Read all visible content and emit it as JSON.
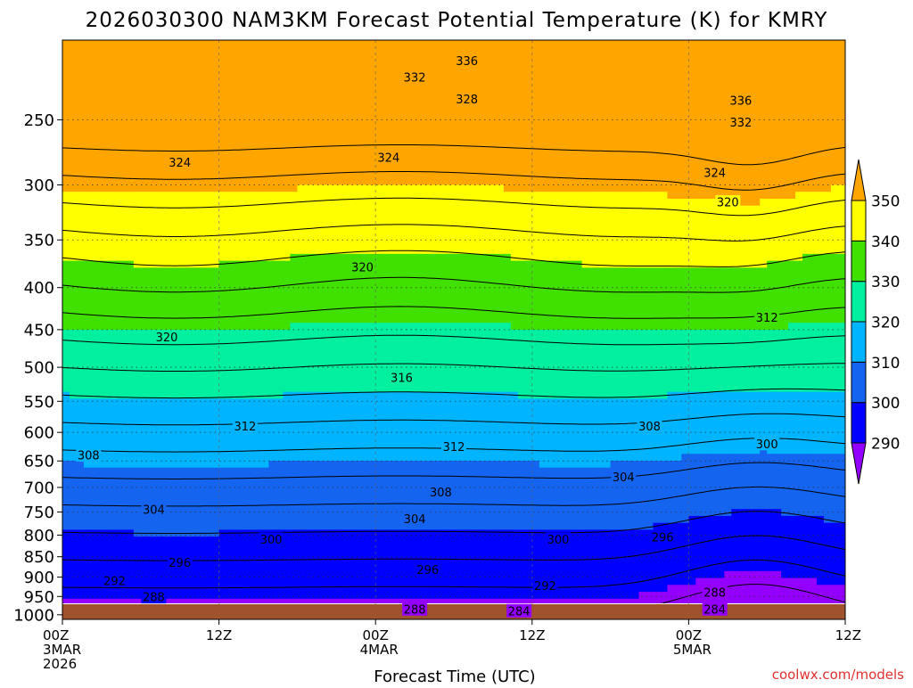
{
  "chart_data": {
    "type": "heatmap",
    "title": "2026030300 NAM3KM Forecast Potential Temperature (K) for KMRY",
    "xlabel": "Forecast Time (UTC)",
    "credit": "coolwx.com/models",
    "y_scale": "log pressure (hPa), inverted",
    "y_ticks": [
      "250",
      "300",
      "350",
      "400",
      "450",
      "500",
      "550",
      "600",
      "650",
      "700",
      "750",
      "800",
      "850",
      "900",
      "950",
      "1000"
    ],
    "ylim": [
      1013,
      200
    ],
    "x_ticks": [
      {
        "hour": 0,
        "lines": [
          "00Z",
          "3MAR",
          "2026"
        ]
      },
      {
        "hour": 12,
        "lines": [
          "12Z"
        ]
      },
      {
        "hour": 24,
        "lines": [
          "00Z",
          "4MAR"
        ]
      },
      {
        "hour": 36,
        "lines": [
          "12Z"
        ]
      },
      {
        "hour": 48,
        "lines": [
          "00Z",
          "5MAR"
        ]
      },
      {
        "hour": 60,
        "lines": [
          "12Z"
        ]
      }
    ],
    "xlim": [
      0,
      60
    ],
    "colorbar": {
      "labels": [
        "290",
        "300",
        "310",
        "320",
        "330",
        "340",
        "350"
      ],
      "levels": [
        290,
        300,
        310,
        320,
        330,
        340,
        350
      ],
      "colors": [
        "#9400ff",
        "#0000ff",
        "#1464f0",
        "#00b4ff",
        "#00f0a0",
        "#40e000",
        "#ffff00",
        "#ffa500"
      ]
    },
    "isotherm_interval": 4,
    "isotherm_value_range": [
      284,
      356
    ],
    "contour_labels": [
      {
        "value": "336",
        "hour": 31,
        "p": 212
      },
      {
        "value": "332",
        "hour": 27,
        "p": 222
      },
      {
        "value": "328",
        "hour": 31,
        "p": 236
      },
      {
        "value": "324",
        "hour": 9,
        "p": 282
      },
      {
        "value": "324",
        "hour": 25,
        "p": 278
      },
      {
        "value": "336",
        "hour": 52,
        "p": 237
      },
      {
        "value": "332",
        "hour": 52,
        "p": 252
      },
      {
        "value": "324",
        "hour": 50,
        "p": 290
      },
      {
        "value": "320",
        "hour": 51,
        "p": 315
      },
      {
        "value": "320",
        "hour": 23,
        "p": 378
      },
      {
        "value": "320",
        "hour": 8,
        "p": 460
      },
      {
        "value": "312",
        "hour": 54,
        "p": 435
      },
      {
        "value": "316",
        "hour": 26,
        "p": 515
      },
      {
        "value": "312",
        "hour": 14,
        "p": 590
      },
      {
        "value": "312",
        "hour": 30,
        "p": 625
      },
      {
        "value": "308",
        "hour": 2,
        "p": 640
      },
      {
        "value": "308",
        "hour": 45,
        "p": 590
      },
      {
        "value": "300",
        "hour": 54,
        "p": 620
      },
      {
        "value": "304",
        "hour": 43,
        "p": 680
      },
      {
        "value": "308",
        "hour": 29,
        "p": 710
      },
      {
        "value": "304",
        "hour": 7,
        "p": 745
      },
      {
        "value": "304",
        "hour": 27,
        "p": 765
      },
      {
        "value": "300",
        "hour": 16,
        "p": 810
      },
      {
        "value": "300",
        "hour": 38,
        "p": 810
      },
      {
        "value": "296",
        "hour": 46,
        "p": 805
      },
      {
        "value": "296",
        "hour": 9,
        "p": 865
      },
      {
        "value": "296",
        "hour": 28,
        "p": 882
      },
      {
        "value": "292",
        "hour": 4,
        "p": 910
      },
      {
        "value": "292",
        "hour": 37,
        "p": 922
      },
      {
        "value": "288",
        "hour": 7,
        "p": 952
      },
      {
        "value": "288",
        "hour": 50,
        "p": 940
      },
      {
        "value": "288",
        "hour": 27,
        "p": 985
      },
      {
        "value": "284",
        "hour": 35,
        "p": 990
      },
      {
        "value": "284",
        "hour": 50,
        "p": 985
      }
    ]
  }
}
